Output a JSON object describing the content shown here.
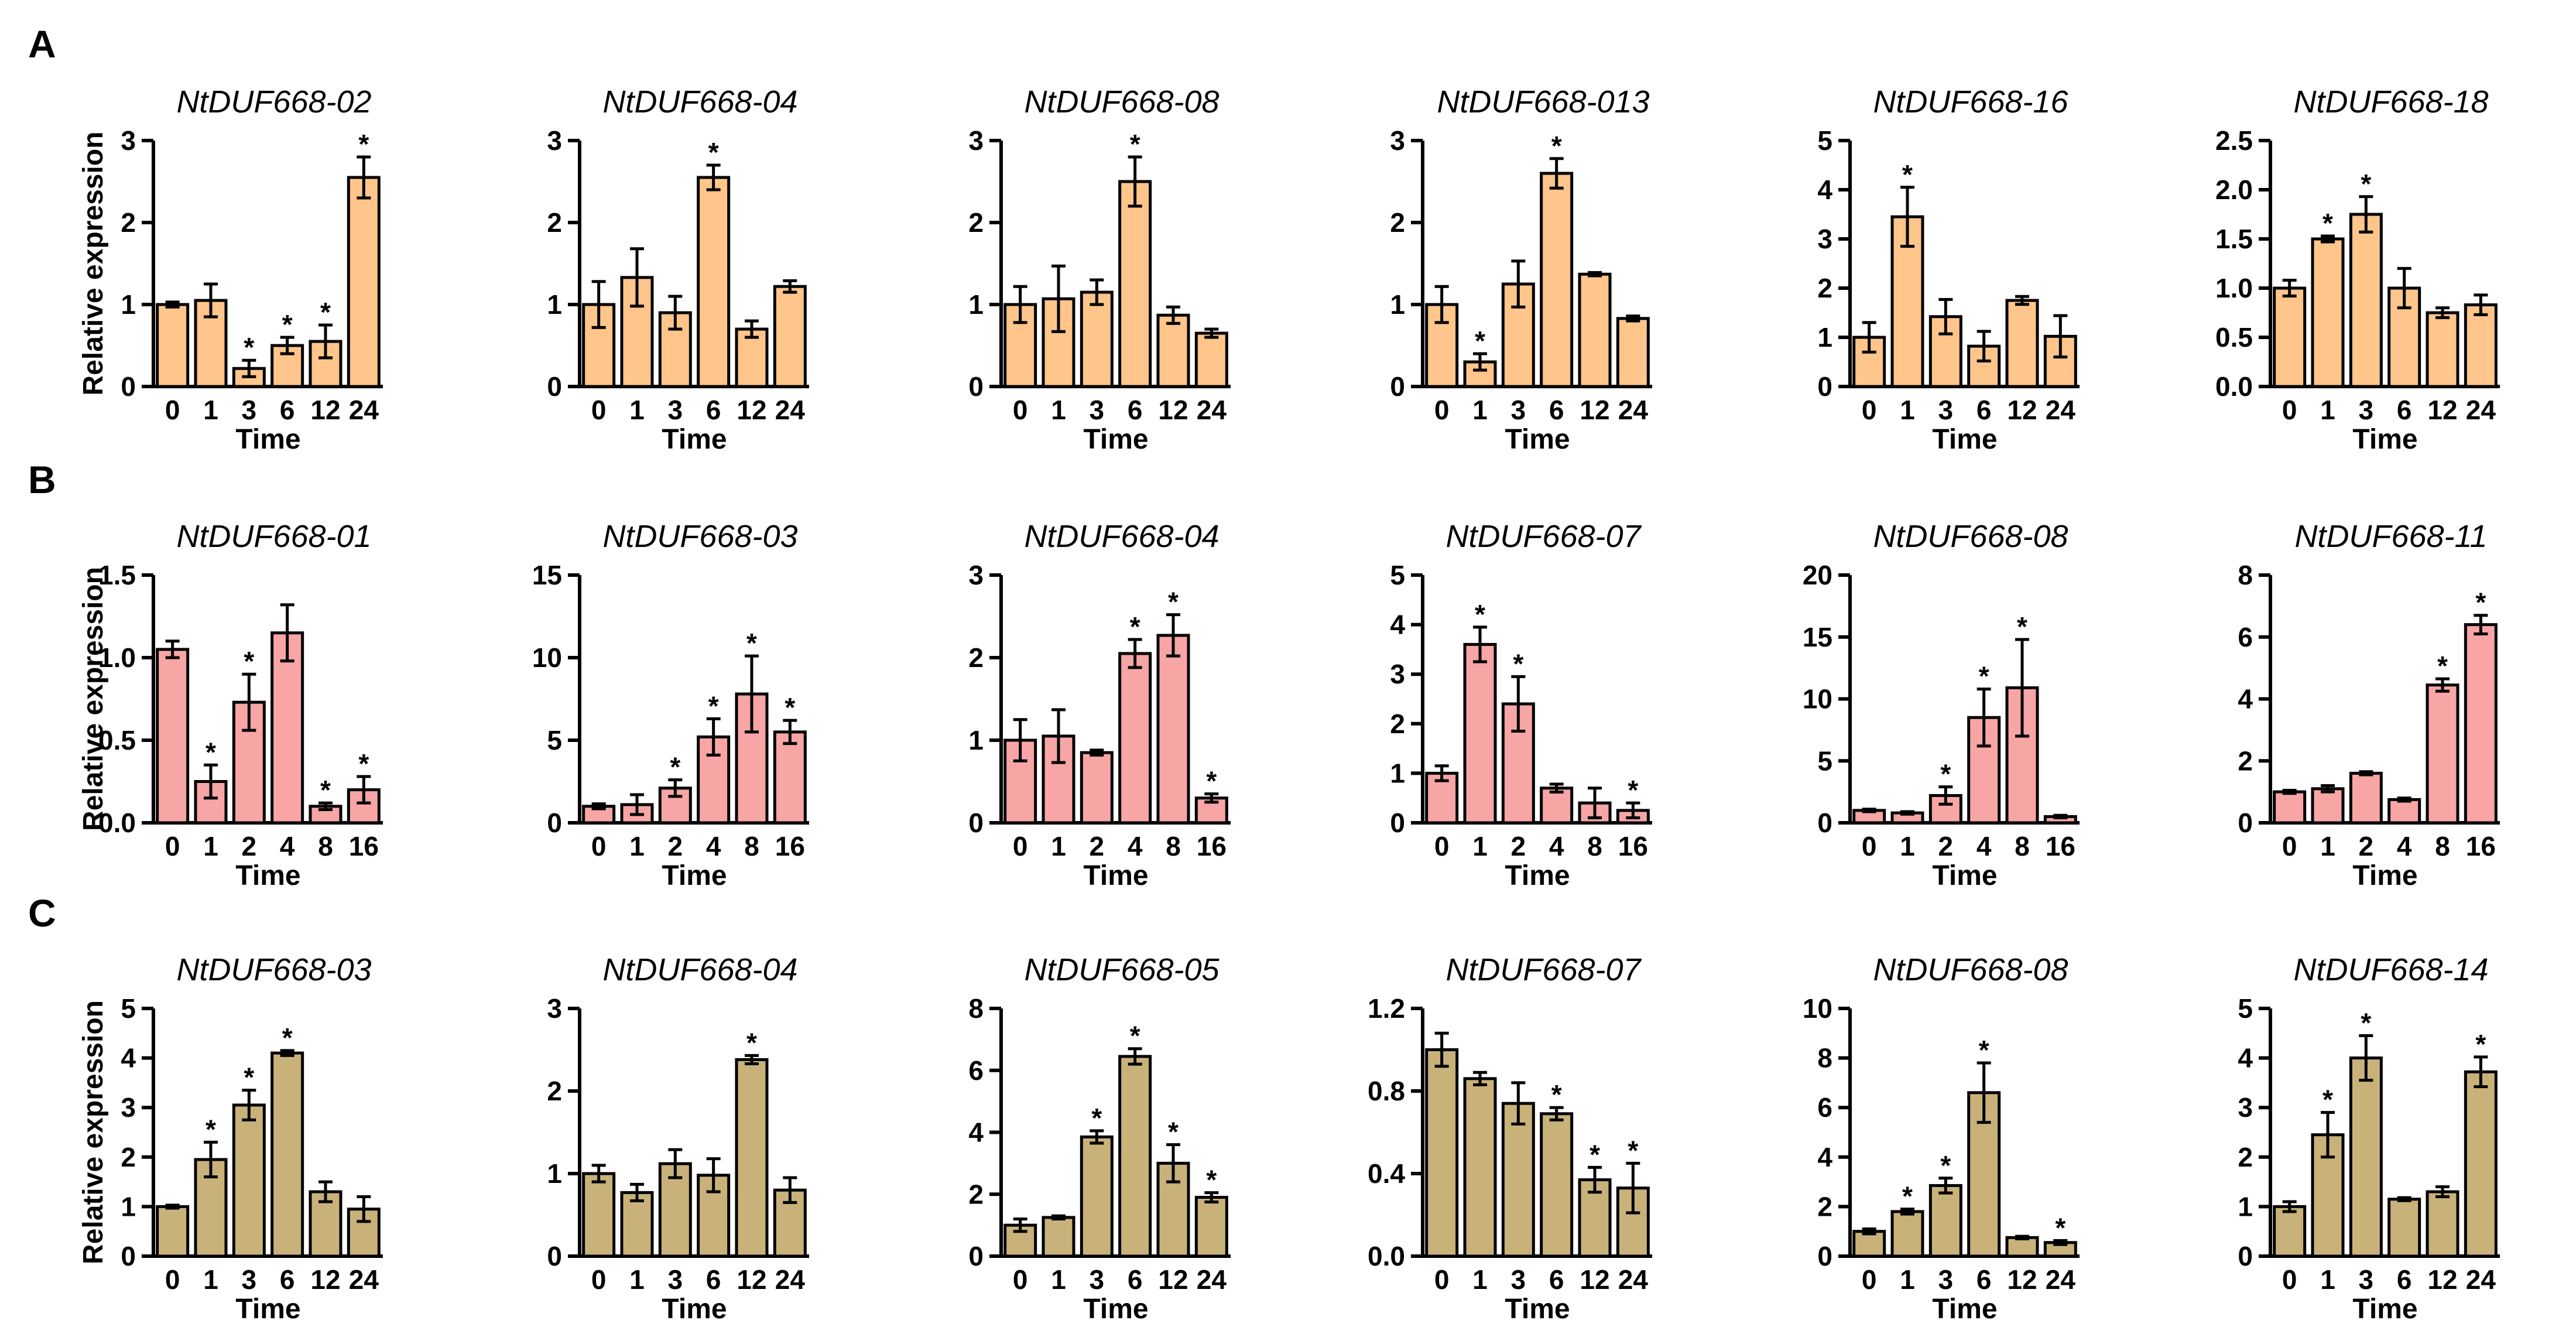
{
  "colors": {
    "row_A": "#FFC58A",
    "row_B": "#F7A5A5",
    "row_C": "#C9B27A",
    "axis": "#000000"
  },
  "chart_data": [
    {
      "row": "A",
      "type": "bar",
      "xlabel": "Time",
      "ylabel": "Relative expression",
      "charts": [
        {
          "title": "NtDUF668-02",
          "categories": [
            "0",
            "1",
            "3",
            "6",
            "12",
            "24"
          ],
          "values": [
            1.0,
            1.05,
            0.22,
            0.5,
            0.55,
            2.55
          ],
          "errors": [
            0.03,
            0.2,
            0.1,
            0.1,
            0.2,
            0.25
          ],
          "sig": [
            false,
            false,
            true,
            true,
            true,
            true
          ],
          "ylim": [
            0,
            3
          ],
          "ticks": [
            "0",
            "1",
            "2",
            "3"
          ]
        },
        {
          "title": "NtDUF668-04",
          "categories": [
            "0",
            "1",
            "3",
            "6",
            "12",
            "24"
          ],
          "values": [
            1.0,
            1.33,
            0.9,
            2.55,
            0.7,
            1.22
          ],
          "errors": [
            0.28,
            0.35,
            0.2,
            0.15,
            0.1,
            0.07
          ],
          "sig": [
            false,
            false,
            false,
            true,
            false,
            false
          ],
          "ylim": [
            0,
            3
          ],
          "ticks": [
            "0",
            "1",
            "2",
            "3"
          ]
        },
        {
          "title": "NtDUF668-08",
          "categories": [
            "0",
            "1",
            "3",
            "6",
            "12",
            "24"
          ],
          "values": [
            1.0,
            1.07,
            1.15,
            2.5,
            0.87,
            0.65
          ],
          "errors": [
            0.22,
            0.4,
            0.15,
            0.3,
            0.1,
            0.05
          ],
          "sig": [
            false,
            false,
            false,
            true,
            false,
            false
          ],
          "ylim": [
            0,
            3
          ],
          "ticks": [
            "0",
            "1",
            "2",
            "3"
          ]
        },
        {
          "title": "NtDUF668-013",
          "categories": [
            "0",
            "1",
            "3",
            "6",
            "12",
            "24"
          ],
          "values": [
            1.0,
            0.3,
            1.25,
            2.6,
            1.37,
            0.83
          ],
          "errors": [
            0.22,
            0.1,
            0.28,
            0.18,
            0.02,
            0.03
          ],
          "sig": [
            false,
            true,
            false,
            true,
            false,
            false
          ],
          "ylim": [
            0,
            3
          ],
          "ticks": [
            "0",
            "1",
            "2",
            "3"
          ]
        },
        {
          "title": "NtDUF668-16",
          "categories": [
            "0",
            "1",
            "3",
            "6",
            "12",
            "24"
          ],
          "values": [
            1.0,
            3.45,
            1.42,
            0.82,
            1.75,
            1.02
          ],
          "errors": [
            0.3,
            0.6,
            0.35,
            0.3,
            0.08,
            0.42
          ],
          "sig": [
            false,
            true,
            false,
            false,
            false,
            false
          ],
          "ylim": [
            0,
            5
          ],
          "ticks": [
            "0",
            "1",
            "2",
            "3",
            "4",
            "5"
          ]
        },
        {
          "title": "NtDUF668-18",
          "categories": [
            "0",
            "1",
            "3",
            "6",
            "12",
            "24"
          ],
          "values": [
            1.0,
            1.5,
            1.75,
            1.0,
            0.75,
            0.83
          ],
          "errors": [
            0.08,
            0.03,
            0.18,
            0.2,
            0.05,
            0.1
          ],
          "sig": [
            false,
            true,
            true,
            false,
            false,
            false
          ],
          "ylim": [
            0,
            2.5
          ],
          "ticks": [
            "0.0",
            "0.5",
            "1.0",
            "1.5",
            "2.0",
            "2.5"
          ]
        }
      ]
    },
    {
      "row": "B",
      "type": "bar",
      "xlabel": "Time",
      "ylabel": "Relative expression",
      "charts": [
        {
          "title": "NtDUF668-01",
          "categories": [
            "0",
            "1",
            "2",
            "4",
            "8",
            "16"
          ],
          "values": [
            1.05,
            0.25,
            0.73,
            1.15,
            0.1,
            0.2
          ],
          "errors": [
            0.05,
            0.1,
            0.17,
            0.17,
            0.02,
            0.08
          ],
          "sig": [
            false,
            true,
            true,
            false,
            true,
            true
          ],
          "ylim": [
            0,
            1.5
          ],
          "ticks": [
            "0.0",
            "0.5",
            "1.0",
            "1.5"
          ]
        },
        {
          "title": "NtDUF668-03",
          "categories": [
            "0",
            "1",
            "2",
            "4",
            "8",
            "16"
          ],
          "values": [
            1.0,
            1.1,
            2.1,
            5.2,
            7.8,
            5.5
          ],
          "errors": [
            0.15,
            0.6,
            0.5,
            1.1,
            2.3,
            0.7
          ],
          "sig": [
            false,
            false,
            true,
            true,
            true,
            true
          ],
          "ylim": [
            0,
            15
          ],
          "ticks": [
            "0",
            "5",
            "10",
            "15"
          ]
        },
        {
          "title": "NtDUF668-04",
          "categories": [
            "0",
            "1",
            "2",
            "4",
            "8",
            "16"
          ],
          "values": [
            1.0,
            1.05,
            0.85,
            2.05,
            2.27,
            0.3
          ],
          "errors": [
            0.25,
            0.32,
            0.03,
            0.17,
            0.25,
            0.05
          ],
          "sig": [
            false,
            false,
            false,
            true,
            true,
            true
          ],
          "ylim": [
            0,
            3
          ],
          "ticks": [
            "0",
            "1",
            "2",
            "3"
          ]
        },
        {
          "title": "NtDUF668-07",
          "categories": [
            "0",
            "1",
            "2",
            "4",
            "8",
            "16"
          ],
          "values": [
            1.0,
            3.6,
            2.4,
            0.7,
            0.4,
            0.25
          ],
          "errors": [
            0.15,
            0.35,
            0.55,
            0.08,
            0.3,
            0.15
          ],
          "sig": [
            false,
            true,
            true,
            false,
            false,
            true
          ],
          "ylim": [
            0,
            5
          ],
          "ticks": [
            "0",
            "1",
            "2",
            "3",
            "4",
            "5"
          ]
        },
        {
          "title": "NtDUF668-08",
          "categories": [
            "0",
            "1",
            "2",
            "4",
            "8",
            "16"
          ],
          "values": [
            1.0,
            0.8,
            2.2,
            8.5,
            10.9,
            0.5
          ],
          "errors": [
            0.1,
            0.1,
            0.7,
            2.3,
            3.9,
            0.1
          ],
          "sig": [
            false,
            false,
            true,
            true,
            true,
            false
          ],
          "ylim": [
            0,
            20
          ],
          "ticks": [
            "0",
            "5",
            "10",
            "15",
            "20"
          ]
        },
        {
          "title": "NtDUF668-11",
          "categories": [
            "0",
            "1",
            "2",
            "4",
            "8",
            "16"
          ],
          "values": [
            1.0,
            1.1,
            1.6,
            0.75,
            4.45,
            6.4
          ],
          "errors": [
            0.05,
            0.1,
            0.05,
            0.05,
            0.2,
            0.3
          ],
          "sig": [
            false,
            false,
            false,
            false,
            true,
            true
          ],
          "ylim": [
            0,
            8
          ],
          "ticks": [
            "0",
            "2",
            "4",
            "6",
            "8"
          ]
        }
      ]
    },
    {
      "row": "C",
      "type": "bar",
      "xlabel": "Time",
      "ylabel": "Relative expression",
      "charts": [
        {
          "title": "NtDUF668-03",
          "categories": [
            "0",
            "1",
            "3",
            "6",
            "12",
            "24"
          ],
          "values": [
            1.0,
            1.95,
            3.05,
            4.1,
            1.3,
            0.95
          ],
          "errors": [
            0.03,
            0.35,
            0.3,
            0.05,
            0.2,
            0.25
          ],
          "sig": [
            false,
            true,
            true,
            true,
            false,
            false
          ],
          "ylim": [
            0,
            5
          ],
          "ticks": [
            "0",
            "1",
            "2",
            "3",
            "4",
            "5"
          ]
        },
        {
          "title": "NtDUF668-04",
          "categories": [
            "0",
            "1",
            "3",
            "6",
            "12",
            "24"
          ],
          "values": [
            1.0,
            0.77,
            1.12,
            0.98,
            2.38,
            0.8
          ],
          "errors": [
            0.1,
            0.1,
            0.17,
            0.2,
            0.05,
            0.15
          ],
          "sig": [
            false,
            false,
            false,
            false,
            true,
            false
          ],
          "ylim": [
            0,
            3
          ],
          "ticks": [
            "0",
            "1",
            "2",
            "3"
          ]
        },
        {
          "title": "NtDUF668-05",
          "categories": [
            "0",
            "1",
            "3",
            "6",
            "12",
            "24"
          ],
          "values": [
            1.0,
            1.25,
            3.85,
            6.45,
            3.0,
            1.9
          ],
          "errors": [
            0.2,
            0.05,
            0.2,
            0.25,
            0.6,
            0.15
          ],
          "sig": [
            false,
            false,
            true,
            true,
            true,
            true
          ],
          "ylim": [
            0,
            8
          ],
          "ticks": [
            "0",
            "2",
            "4",
            "6",
            "8"
          ]
        },
        {
          "title": "NtDUF668-07",
          "categories": [
            "0",
            "1",
            "3",
            "6",
            "12",
            "24"
          ],
          "values": [
            1.0,
            0.86,
            0.74,
            0.69,
            0.37,
            0.33
          ],
          "errors": [
            0.08,
            0.03,
            0.1,
            0.03,
            0.06,
            0.12
          ],
          "sig": [
            false,
            false,
            false,
            true,
            true,
            true
          ],
          "ylim": [
            0,
            1.2
          ],
          "ticks": [
            "0.0",
            "0.4",
            "0.8",
            "1.2"
          ]
        },
        {
          "title": "NtDUF668-08",
          "categories": [
            "0",
            "1",
            "3",
            "6",
            "12",
            "24"
          ],
          "values": [
            1.0,
            1.8,
            2.85,
            6.6,
            0.75,
            0.55
          ],
          "errors": [
            0.1,
            0.1,
            0.3,
            1.2,
            0.05,
            0.08
          ],
          "sig": [
            false,
            true,
            true,
            true,
            false,
            true
          ],
          "ylim": [
            0,
            10
          ],
          "ticks": [
            "0",
            "2",
            "4",
            "6",
            "8",
            "10"
          ]
        },
        {
          "title": "NtDUF668-14",
          "categories": [
            "0",
            "1",
            "3",
            "6",
            "12",
            "24"
          ],
          "values": [
            1.0,
            2.45,
            4.0,
            1.15,
            1.3,
            3.72
          ],
          "errors": [
            0.1,
            0.45,
            0.45,
            0.03,
            0.1,
            0.3
          ],
          "sig": [
            false,
            true,
            true,
            false,
            false,
            true
          ],
          "ylim": [
            0,
            5
          ],
          "ticks": [
            "0",
            "1",
            "2",
            "3",
            "4",
            "5"
          ]
        }
      ]
    }
  ]
}
